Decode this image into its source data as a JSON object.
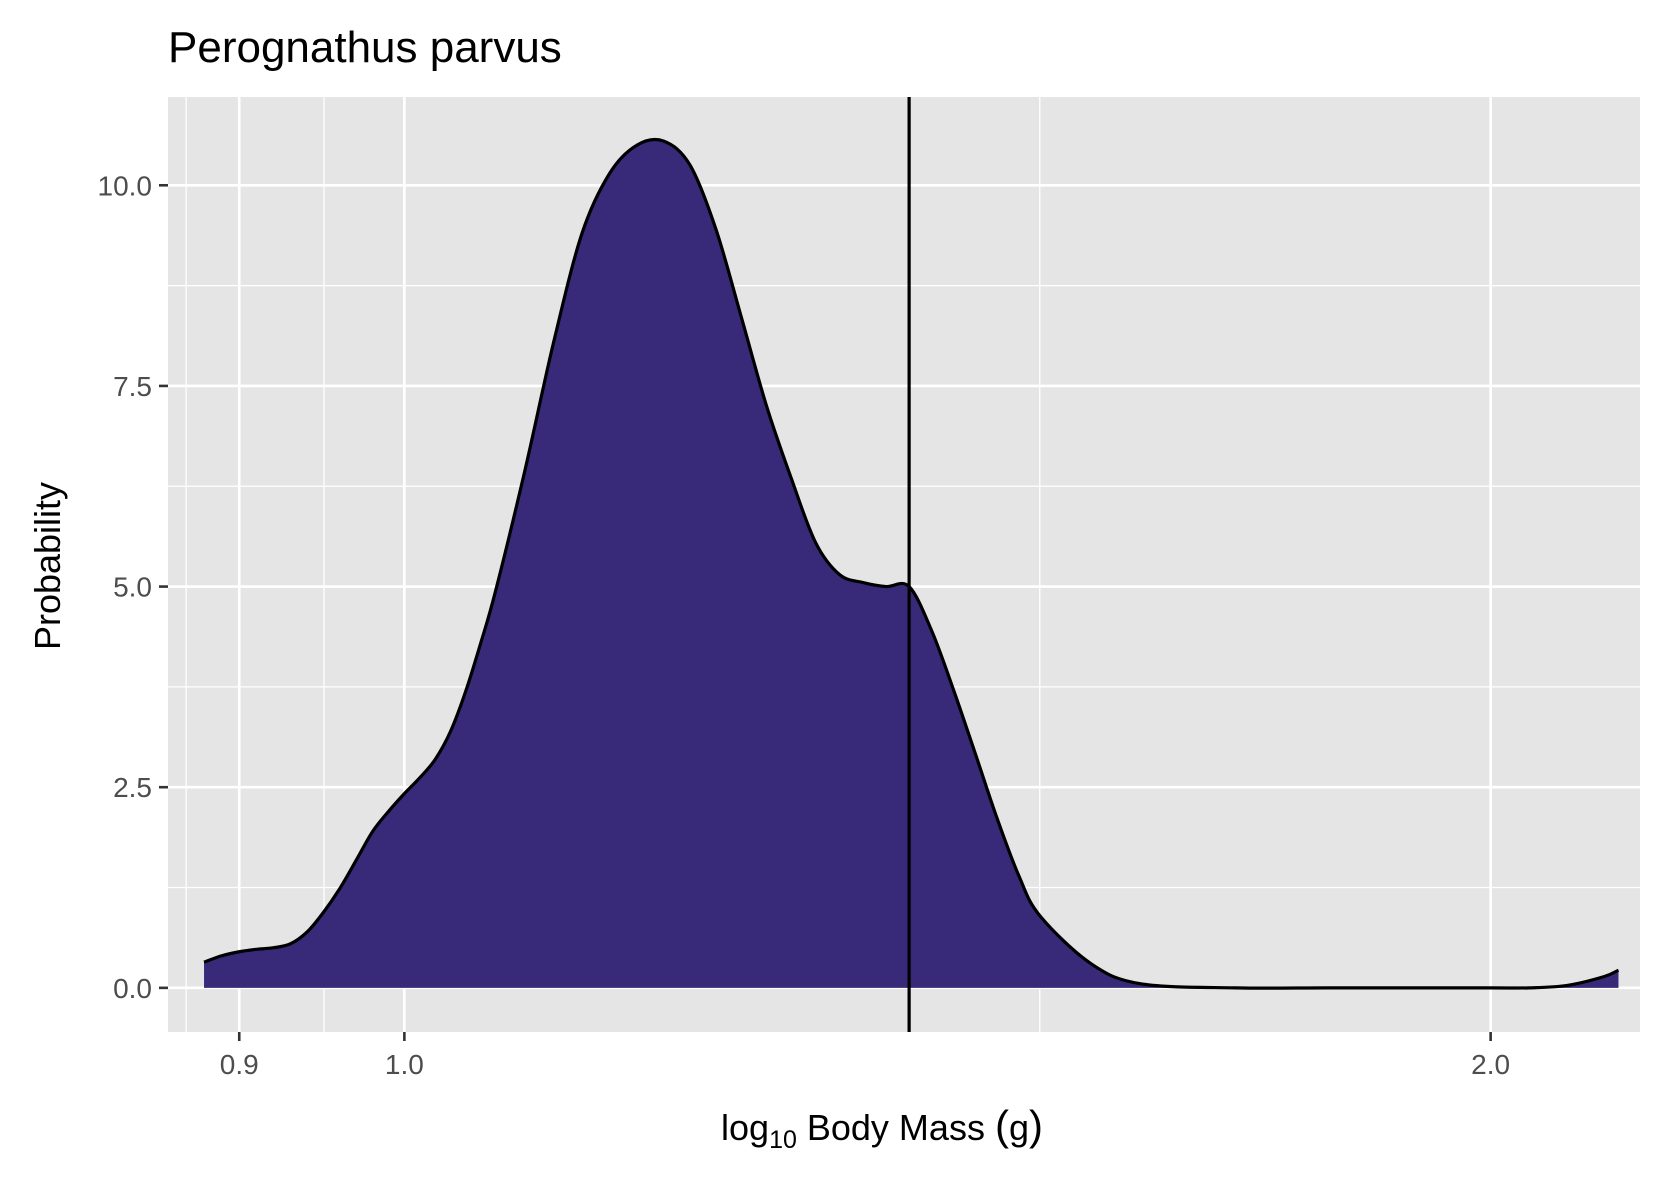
{
  "chart_data": {
    "type": "area",
    "title": "Perognathus parvus",
    "xlabel": "log10 Body Mass (g)",
    "xlabel_parts": {
      "prefix": "log",
      "subscript": "10",
      "suffix": " Body Mass ",
      "paren_open": "(",
      "unit": "g",
      "paren_close": ")"
    },
    "ylabel": "Probability",
    "x_scale": "log10",
    "xlim": [
      0.86,
      2.2
    ],
    "ylim": [
      -0.55,
      11.1
    ],
    "x_ticks": [
      0.9,
      1.0,
      2.0
    ],
    "x_tick_labels": [
      "0.9",
      "1.0",
      "2.0"
    ],
    "x_minor_breaks": [
      0.87,
      0.95,
      1.5
    ],
    "y_ticks": [
      0.0,
      2.5,
      5.0,
      7.5,
      10.0
    ],
    "y_tick_labels": [
      "0.0",
      "2.5",
      "5.0",
      "7.5",
      "10.0"
    ],
    "y_minor_breaks": [
      1.25,
      3.75,
      6.25,
      8.75
    ],
    "grid": true,
    "vline_x": 1.38,
    "fill_color": "#382a79",
    "panel_color": "#e5e5e5",
    "series": [
      {
        "x": [
          0.88,
          0.89,
          0.9,
          0.91,
          0.92,
          0.93,
          0.94,
          0.95,
          0.96,
          0.97,
          0.98,
          0.99,
          1.0,
          1.01,
          1.02,
          1.03,
          1.04,
          1.05,
          1.06,
          1.08,
          1.1,
          1.12,
          1.14,
          1.16,
          1.18,
          1.2,
          1.22,
          1.24,
          1.26,
          1.28,
          1.3,
          1.32,
          1.34,
          1.36,
          1.38,
          1.4,
          1.42,
          1.44,
          1.46,
          1.48,
          1.5,
          1.55,
          1.6,
          1.7,
          1.8,
          1.9,
          2.0,
          2.05,
          2.1,
          2.15,
          2.17
        ],
        "y": [
          0.32,
          0.4,
          0.45,
          0.48,
          0.5,
          0.55,
          0.7,
          0.95,
          1.25,
          1.6,
          1.95,
          2.2,
          2.42,
          2.62,
          2.85,
          3.2,
          3.7,
          4.3,
          4.95,
          6.45,
          8.05,
          9.4,
          10.15,
          10.5,
          10.55,
          10.25,
          9.45,
          8.35,
          7.25,
          6.35,
          5.55,
          5.15,
          5.05,
          5.0,
          5.0,
          4.45,
          3.7,
          2.9,
          2.1,
          1.4,
          0.9,
          0.3,
          0.05,
          0.0,
          0.0,
          0.0,
          0.0,
          0.0,
          0.03,
          0.14,
          0.22
        ]
      }
    ]
  }
}
